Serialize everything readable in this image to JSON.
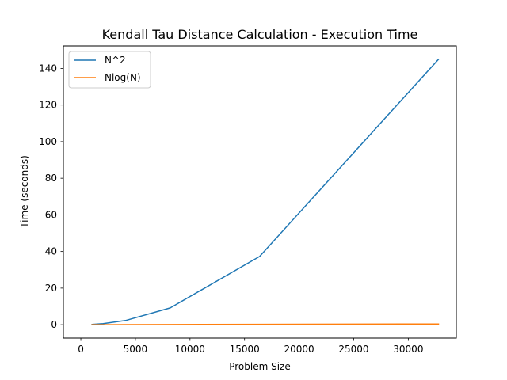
{
  "chart_data": {
    "type": "line",
    "title": "Kendall Tau Distance Calculation - Execution Time",
    "xlabel": "Problem Size",
    "ylabel": "Time (seconds)",
    "xlim": [
      -1600,
      34400
    ],
    "ylim": [
      -7.3,
      152.3
    ],
    "xticks": [
      0,
      5000,
      10000,
      15000,
      20000,
      25000,
      30000
    ],
    "yticks": [
      0,
      20,
      40,
      60,
      80,
      100,
      120,
      140
    ],
    "legend_position": "top-left",
    "grid": false,
    "series": [
      {
        "name": "N^2",
        "color": "#1f77b4",
        "x": [
          1024,
          2048,
          4096,
          8192,
          16384,
          32768
        ],
        "y": [
          0.15,
          0.6,
          2.3,
          9.2,
          37.3,
          145
        ]
      },
      {
        "name": "Nlog(N)",
        "color": "#ff7f0e",
        "x": [
          1024,
          2048,
          4096,
          8192,
          16384,
          32768
        ],
        "y": [
          0.0,
          0.02,
          0.05,
          0.1,
          0.2,
          0.4
        ]
      }
    ]
  }
}
